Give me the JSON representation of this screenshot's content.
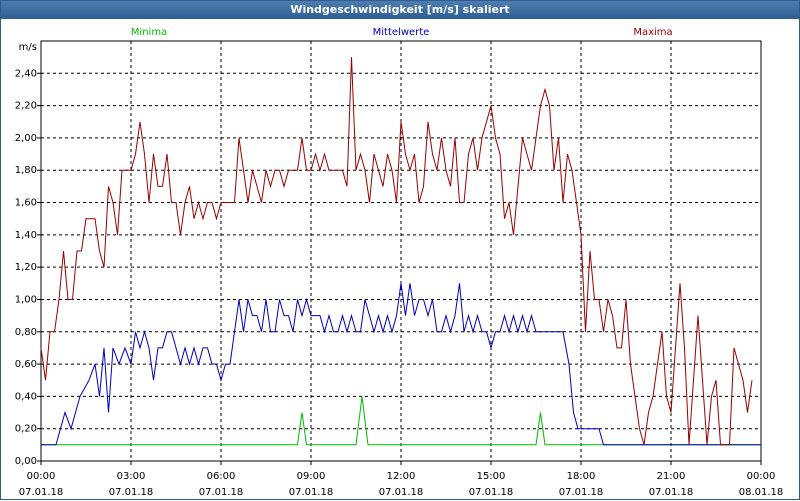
{
  "window": {
    "title": "Windgeschwindigkeit [m/s] skaliert"
  },
  "chart_data": {
    "type": "line",
    "title": "Windgeschwindigkeit [m/s] skaliert",
    "ylabel": "m/s",
    "xlabel": "",
    "ylim": [
      0,
      2.6
    ],
    "grid": true,
    "legend_placement": "top",
    "yticks": [
      "0,00",
      "0,20",
      "0,40",
      "0,60",
      "0,80",
      "1,00",
      "1,20",
      "1,40",
      "1,60",
      "1,80",
      "2,00",
      "2,20",
      "2,40"
    ],
    "ytick_values": [
      0,
      0.2,
      0.4,
      0.6,
      0.8,
      1.0,
      1.2,
      1.4,
      1.6,
      1.8,
      2.0,
      2.2,
      2.4
    ],
    "xticks": [
      {
        "time": "00:00",
        "date": "07.01.18",
        "hours": 0
      },
      {
        "time": "03:00",
        "date": "07.01.18",
        "hours": 3
      },
      {
        "time": "06:00",
        "date": "07.01.18",
        "hours": 6
      },
      {
        "time": "09:00",
        "date": "07.01.18",
        "hours": 9
      },
      {
        "time": "12:00",
        "date": "07.01.18",
        "hours": 12
      },
      {
        "time": "15:00",
        "date": "07.01.18",
        "hours": 15
      },
      {
        "time": "18:00",
        "date": "07.01.18",
        "hours": 18
      },
      {
        "time": "21:00",
        "date": "07.01.18",
        "hours": 21
      },
      {
        "time": "00:00",
        "date": "08.01.18",
        "hours": 24
      }
    ],
    "xlim_hours": [
      0,
      24
    ],
    "series": [
      {
        "name": "Minima",
        "color": "#00bb00",
        "points": [
          [
            0,
            0.1
          ],
          [
            8.55,
            0.1
          ],
          [
            8.7,
            0.3
          ],
          [
            8.85,
            0.1
          ],
          [
            10.5,
            0.1
          ],
          [
            10.7,
            0.4
          ],
          [
            10.9,
            0.1
          ],
          [
            16.5,
            0.1
          ],
          [
            16.65,
            0.3
          ],
          [
            16.8,
            0.1
          ],
          [
            24,
            0.1
          ]
        ]
      },
      {
        "name": "Mittelwerte",
        "color": "#0000bb",
        "points": [
          [
            0,
            0.1
          ],
          [
            0.5,
            0.1
          ],
          [
            0.8,
            0.3
          ],
          [
            1.0,
            0.2
          ],
          [
            1.3,
            0.4
          ],
          [
            1.6,
            0.5
          ],
          [
            1.8,
            0.6
          ],
          [
            1.95,
            0.4
          ],
          [
            2.1,
            0.7
          ],
          [
            2.25,
            0.3
          ],
          [
            2.4,
            0.7
          ],
          [
            2.6,
            0.6
          ],
          [
            2.8,
            0.7
          ],
          [
            3.0,
            0.6
          ],
          [
            3.15,
            0.8
          ],
          [
            3.3,
            0.7
          ],
          [
            3.45,
            0.8
          ],
          [
            3.6,
            0.7
          ],
          [
            3.75,
            0.5
          ],
          [
            3.9,
            0.7
          ],
          [
            4.05,
            0.7
          ],
          [
            4.2,
            0.8
          ],
          [
            4.35,
            0.8
          ],
          [
            4.5,
            0.7
          ],
          [
            4.65,
            0.6
          ],
          [
            4.8,
            0.7
          ],
          [
            4.95,
            0.6
          ],
          [
            5.1,
            0.7
          ],
          [
            5.25,
            0.6
          ],
          [
            5.4,
            0.7
          ],
          [
            5.55,
            0.7
          ],
          [
            5.7,
            0.6
          ],
          [
            5.85,
            0.6
          ],
          [
            6.0,
            0.5
          ],
          [
            6.15,
            0.6
          ],
          [
            6.3,
            0.6
          ],
          [
            6.45,
            0.8
          ],
          [
            6.6,
            1.0
          ],
          [
            6.75,
            0.8
          ],
          [
            6.9,
            1.0
          ],
          [
            7.05,
            0.9
          ],
          [
            7.2,
            0.9
          ],
          [
            7.35,
            0.8
          ],
          [
            7.5,
            1.0
          ],
          [
            7.65,
            0.8
          ],
          [
            7.8,
            0.8
          ],
          [
            7.95,
            1.0
          ],
          [
            8.1,
            0.9
          ],
          [
            8.25,
            0.9
          ],
          [
            8.4,
            0.8
          ],
          [
            8.55,
            1.0
          ],
          [
            8.7,
            0.9
          ],
          [
            8.85,
            1.0
          ],
          [
            9.0,
            0.9
          ],
          [
            9.15,
            0.9
          ],
          [
            9.3,
            0.9
          ],
          [
            9.45,
            0.8
          ],
          [
            9.6,
            0.9
          ],
          [
            9.75,
            0.8
          ],
          [
            9.9,
            0.8
          ],
          [
            10.05,
            0.9
          ],
          [
            10.2,
            0.8
          ],
          [
            10.35,
            0.9
          ],
          [
            10.5,
            0.8
          ],
          [
            10.65,
            0.8
          ],
          [
            10.8,
            1.0
          ],
          [
            10.95,
            0.9
          ],
          [
            11.1,
            0.8
          ],
          [
            11.25,
            0.9
          ],
          [
            11.4,
            0.8
          ],
          [
            11.55,
            0.9
          ],
          [
            11.7,
            0.8
          ],
          [
            11.85,
            0.9
          ],
          [
            12.0,
            1.1
          ],
          [
            12.15,
            0.9
          ],
          [
            12.3,
            1.1
          ],
          [
            12.45,
            0.9
          ],
          [
            12.6,
            1.0
          ],
          [
            12.75,
            1.0
          ],
          [
            12.9,
            0.9
          ],
          [
            13.05,
            1.0
          ],
          [
            13.2,
            0.8
          ],
          [
            13.35,
            0.8
          ],
          [
            13.5,
            0.9
          ],
          [
            13.65,
            0.8
          ],
          [
            13.8,
            0.9
          ],
          [
            13.95,
            1.1
          ],
          [
            14.1,
            0.8
          ],
          [
            14.25,
            0.9
          ],
          [
            14.4,
            0.8
          ],
          [
            14.55,
            0.9
          ],
          [
            14.7,
            0.8
          ],
          [
            14.85,
            0.8
          ],
          [
            15.0,
            0.7
          ],
          [
            15.15,
            0.8
          ],
          [
            15.3,
            0.8
          ],
          [
            15.45,
            0.9
          ],
          [
            15.6,
            0.8
          ],
          [
            15.75,
            0.9
          ],
          [
            15.9,
            0.8
          ],
          [
            16.05,
            0.9
          ],
          [
            16.2,
            0.8
          ],
          [
            16.35,
            0.9
          ],
          [
            16.5,
            0.8
          ],
          [
            16.65,
            0.8
          ],
          [
            16.8,
            0.8
          ],
          [
            17.0,
            0.8
          ],
          [
            17.4,
            0.8
          ],
          [
            17.6,
            0.6
          ],
          [
            17.75,
            0.3
          ],
          [
            17.9,
            0.2
          ],
          [
            18.6,
            0.2
          ],
          [
            18.75,
            0.1
          ],
          [
            24,
            0.1
          ]
        ]
      },
      {
        "name": "Maxima",
        "color": "#990000",
        "points": [
          [
            0,
            0.7
          ],
          [
            0.15,
            0.5
          ],
          [
            0.3,
            0.8
          ],
          [
            0.45,
            0.8
          ],
          [
            0.6,
            1.0
          ],
          [
            0.75,
            1.3
          ],
          [
            0.9,
            1.0
          ],
          [
            1.05,
            1.0
          ],
          [
            1.2,
            1.3
          ],
          [
            1.35,
            1.3
          ],
          [
            1.5,
            1.5
          ],
          [
            1.65,
            1.5
          ],
          [
            1.8,
            1.5
          ],
          [
            1.95,
            1.3
          ],
          [
            2.1,
            1.2
          ],
          [
            2.25,
            1.7
          ],
          [
            2.4,
            1.6
          ],
          [
            2.55,
            1.4
          ],
          [
            2.7,
            1.8
          ],
          [
            2.85,
            1.8
          ],
          [
            3.0,
            1.8
          ],
          [
            3.15,
            1.9
          ],
          [
            3.3,
            2.1
          ],
          [
            3.45,
            1.9
          ],
          [
            3.6,
            1.6
          ],
          [
            3.75,
            1.9
          ],
          [
            3.9,
            1.7
          ],
          [
            4.05,
            1.7
          ],
          [
            4.2,
            1.9
          ],
          [
            4.35,
            1.6
          ],
          [
            4.5,
            1.6
          ],
          [
            4.65,
            1.4
          ],
          [
            4.8,
            1.6
          ],
          [
            4.95,
            1.7
          ],
          [
            5.1,
            1.5
          ],
          [
            5.25,
            1.6
          ],
          [
            5.4,
            1.5
          ],
          [
            5.55,
            1.6
          ],
          [
            5.7,
            1.6
          ],
          [
            5.85,
            1.5
          ],
          [
            6.0,
            1.6
          ],
          [
            6.15,
            1.6
          ],
          [
            6.3,
            1.6
          ],
          [
            6.45,
            1.6
          ],
          [
            6.6,
            2.0
          ],
          [
            6.75,
            1.8
          ],
          [
            6.9,
            1.6
          ],
          [
            7.05,
            1.8
          ],
          [
            7.2,
            1.7
          ],
          [
            7.35,
            1.6
          ],
          [
            7.5,
            1.8
          ],
          [
            7.65,
            1.7
          ],
          [
            7.8,
            1.8
          ],
          [
            7.95,
            1.8
          ],
          [
            8.1,
            1.7
          ],
          [
            8.25,
            1.8
          ],
          [
            8.4,
            1.8
          ],
          [
            8.55,
            1.8
          ],
          [
            8.7,
            2.0
          ],
          [
            8.85,
            1.8
          ],
          [
            9.0,
            1.8
          ],
          [
            9.15,
            1.9
          ],
          [
            9.3,
            1.8
          ],
          [
            9.45,
            1.9
          ],
          [
            9.6,
            1.8
          ],
          [
            9.75,
            1.8
          ],
          [
            9.9,
            1.8
          ],
          [
            10.05,
            1.8
          ],
          [
            10.2,
            1.7
          ],
          [
            10.35,
            2.5
          ],
          [
            10.5,
            1.8
          ],
          [
            10.65,
            1.9
          ],
          [
            10.8,
            1.8
          ],
          [
            10.95,
            1.6
          ],
          [
            11.1,
            1.9
          ],
          [
            11.25,
            1.8
          ],
          [
            11.4,
            1.7
          ],
          [
            11.55,
            1.9
          ],
          [
            11.7,
            1.8
          ],
          [
            11.85,
            1.6
          ],
          [
            12.0,
            2.1
          ],
          [
            12.15,
            1.9
          ],
          [
            12.3,
            1.8
          ],
          [
            12.45,
            1.9
          ],
          [
            12.6,
            1.6
          ],
          [
            12.75,
            1.7
          ],
          [
            12.9,
            2.1
          ],
          [
            13.05,
            1.9
          ],
          [
            13.2,
            1.8
          ],
          [
            13.35,
            2.0
          ],
          [
            13.5,
            1.8
          ],
          [
            13.65,
            1.7
          ],
          [
            13.8,
            2.0
          ],
          [
            13.95,
            1.6
          ],
          [
            14.1,
            1.6
          ],
          [
            14.25,
            1.9
          ],
          [
            14.4,
            2.0
          ],
          [
            14.55,
            1.8
          ],
          [
            14.7,
            2.0
          ],
          [
            14.85,
            2.1
          ],
          [
            15.0,
            2.2
          ],
          [
            15.15,
            2.0
          ],
          [
            15.3,
            1.9
          ],
          [
            15.45,
            1.5
          ],
          [
            15.6,
            1.6
          ],
          [
            15.75,
            1.4
          ],
          [
            15.9,
            1.7
          ],
          [
            16.05,
            2.0
          ],
          [
            16.2,
            1.9
          ],
          [
            16.35,
            1.8
          ],
          [
            16.5,
            2.0
          ],
          [
            16.65,
            2.2
          ],
          [
            16.8,
            2.3
          ],
          [
            16.95,
            2.2
          ],
          [
            17.1,
            1.8
          ],
          [
            17.25,
            2.0
          ],
          [
            17.4,
            1.6
          ],
          [
            17.55,
            1.9
          ],
          [
            17.7,
            1.8
          ],
          [
            17.85,
            1.6
          ],
          [
            18.0,
            1.4
          ],
          [
            18.15,
            0.8
          ],
          [
            18.3,
            1.3
          ],
          [
            18.45,
            1.0
          ],
          [
            18.6,
            1.0
          ],
          [
            18.75,
            0.8
          ],
          [
            18.9,
            1.0
          ],
          [
            19.05,
            0.9
          ],
          [
            19.2,
            0.7
          ],
          [
            19.35,
            0.7
          ],
          [
            19.5,
            1.0
          ],
          [
            19.65,
            0.6
          ],
          [
            19.8,
            0.4
          ],
          [
            19.95,
            0.2
          ],
          [
            20.1,
            0.1
          ],
          [
            20.25,
            0.3
          ],
          [
            20.4,
            0.4
          ],
          [
            20.55,
            0.6
          ],
          [
            20.7,
            0.8
          ],
          [
            20.85,
            0.4
          ],
          [
            21.0,
            0.3
          ],
          [
            21.15,
            0.7
          ],
          [
            21.3,
            1.1
          ],
          [
            21.45,
            0.7
          ],
          [
            21.6,
            0.1
          ],
          [
            21.75,
            0.5
          ],
          [
            21.9,
            0.9
          ],
          [
            22.05,
            0.5
          ],
          [
            22.2,
            0.1
          ],
          [
            22.35,
            0.4
          ],
          [
            22.5,
            0.5
          ],
          [
            22.65,
            0.1
          ],
          [
            22.8,
            0.1
          ],
          [
            22.95,
            0.1
          ],
          [
            23.1,
            0.7
          ],
          [
            23.25,
            0.6
          ],
          [
            23.4,
            0.5
          ],
          [
            23.55,
            0.3
          ],
          [
            23.7,
            0.5
          ]
        ]
      }
    ]
  }
}
